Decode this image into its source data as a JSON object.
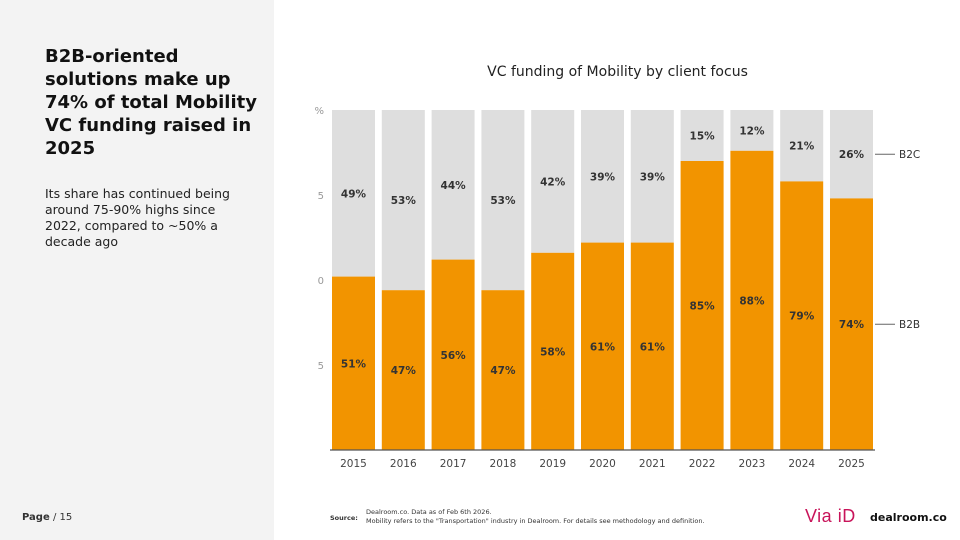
{
  "headline": "B2B-oriented solutions make up 74% of total Mobility VC funding raised in 2025",
  "subtext": "Its share has continued being around 75-90% highs since 2022, compared to ~50% a decade ago",
  "page": {
    "label": "Page",
    "number": "/ 15"
  },
  "footer": {
    "source_label": "Source:",
    "source_line1": "Dealroom.co.  Data as of Feb 6th 2026.",
    "source_line2": "Mobility refers to the \"Transportation\" industry in Dealroom.  For details see methodology and definition."
  },
  "brands": {
    "viaid": "Via iD",
    "dealroom": "dealroom.co"
  },
  "colors": {
    "b2b": "#f29400",
    "b2c": "#dedede",
    "panel": "#f3f3f3",
    "viaid": "#c8145a"
  },
  "chart_data": {
    "type": "bar",
    "stacked": true,
    "title": "VC funding of Mobility by client focus",
    "categories": [
      "2015",
      "2016",
      "2017",
      "2018",
      "2019",
      "2020",
      "2021",
      "2022",
      "2023",
      "2024",
      "2025"
    ],
    "series": [
      {
        "name": "B2B",
        "values": [
          51,
          47,
          56,
          47,
          58,
          61,
          61,
          85,
          88,
          79,
          74
        ],
        "color": "#f29400"
      },
      {
        "name": "B2C",
        "values": [
          49,
          53,
          44,
          53,
          42,
          39,
          39,
          15,
          12,
          21,
          26
        ],
        "color": "#dedede"
      }
    ],
    "yaxis_ticks": [
      "%",
      "5",
      "0",
      "5"
    ],
    "ylim": [
      0,
      100
    ],
    "legend": "right",
    "grid": false
  }
}
